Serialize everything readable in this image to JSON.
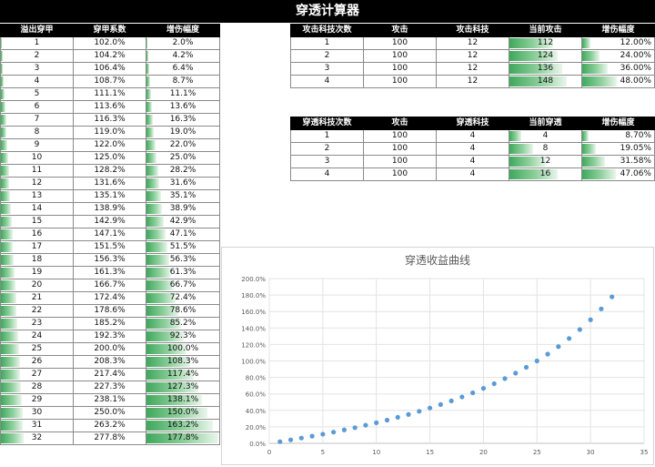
{
  "page": {
    "title": "穿透计算器"
  },
  "left_table": {
    "headers": [
      "溢出穿甲",
      "穿甲系数",
      "增伤幅度"
    ],
    "rows": [
      [
        "1",
        "102.0%",
        "2.0%"
      ],
      [
        "2",
        "104.2%",
        "4.2%"
      ],
      [
        "3",
        "106.4%",
        "6.4%"
      ],
      [
        "4",
        "108.7%",
        "8.7%"
      ],
      [
        "5",
        "111.1%",
        "11.1%"
      ],
      [
        "6",
        "113.6%",
        "13.6%"
      ],
      [
        "7",
        "116.3%",
        "16.3%"
      ],
      [
        "8",
        "119.0%",
        "19.0%"
      ],
      [
        "9",
        "122.0%",
        "22.0%"
      ],
      [
        "10",
        "125.0%",
        "25.0%"
      ],
      [
        "11",
        "128.2%",
        "28.2%"
      ],
      [
        "12",
        "131.6%",
        "31.6%"
      ],
      [
        "13",
        "135.1%",
        "35.1%"
      ],
      [
        "14",
        "138.9%",
        "38.9%"
      ],
      [
        "15",
        "142.9%",
        "42.9%"
      ],
      [
        "16",
        "147.1%",
        "47.1%"
      ],
      [
        "17",
        "151.5%",
        "51.5%"
      ],
      [
        "18",
        "156.3%",
        "56.3%"
      ],
      [
        "19",
        "161.3%",
        "61.3%"
      ],
      [
        "20",
        "166.7%",
        "66.7%"
      ],
      [
        "21",
        "172.4%",
        "72.4%"
      ],
      [
        "22",
        "178.6%",
        "78.6%"
      ],
      [
        "23",
        "185.2%",
        "85.2%"
      ],
      [
        "24",
        "192.3%",
        "92.3%"
      ],
      [
        "25",
        "200.0%",
        "100.0%"
      ],
      [
        "26",
        "208.3%",
        "108.3%"
      ],
      [
        "27",
        "217.4%",
        "117.4%"
      ],
      [
        "28",
        "227.3%",
        "127.3%"
      ],
      [
        "29",
        "238.1%",
        "138.1%"
      ],
      [
        "30",
        "250.0%",
        "150.0%"
      ],
      [
        "31",
        "263.2%",
        "163.2%"
      ],
      [
        "32",
        "277.8%",
        "177.8%"
      ]
    ]
  },
  "attack_table": {
    "headers": [
      "攻击科技次数",
      "攻击",
      "攻击科技",
      "当前攻击",
      "增伤幅度"
    ],
    "rows": [
      [
        "1",
        "100",
        "12",
        "112",
        "12.00%"
      ],
      [
        "2",
        "100",
        "12",
        "124",
        "24.00%"
      ],
      [
        "3",
        "100",
        "12",
        "136",
        "36.00%"
      ],
      [
        "4",
        "100",
        "12",
        "148",
        "48.00%"
      ]
    ]
  },
  "pen_table": {
    "headers": [
      "穿透科技次数",
      "攻击",
      "穿透科技",
      "当前穿透",
      "增伤幅度"
    ],
    "rows": [
      [
        "1",
        "100",
        "4",
        "4",
        "8.70%"
      ],
      [
        "2",
        "100",
        "4",
        "8",
        "19.05%"
      ],
      [
        "3",
        "100",
        "4",
        "12",
        "31.58%"
      ],
      [
        "4",
        "100",
        "4",
        "16",
        "47.06%"
      ]
    ]
  },
  "chart_data": {
    "type": "scatter",
    "title": "穿透收益曲线",
    "xlabel": "",
    "ylabel": "",
    "xlim": [
      0,
      35
    ],
    "ylim": [
      0,
      2.0
    ],
    "x_ticks": [
      "0",
      "5",
      "10",
      "15",
      "20",
      "25",
      "30",
      "35"
    ],
    "y_ticks": [
      "0.0%",
      "20.0%",
      "40.0%",
      "60.0%",
      "80.0%",
      "100.0%",
      "120.0%",
      "140.0%",
      "160.0%",
      "180.0%",
      "200.0%"
    ],
    "grid": true,
    "series": [
      {
        "color": "#5b9bd5",
        "x": [
          1,
          2,
          3,
          4,
          5,
          6,
          7,
          8,
          9,
          10,
          11,
          12,
          13,
          14,
          15,
          16,
          17,
          18,
          19,
          20,
          21,
          22,
          23,
          24,
          25,
          26,
          27,
          28,
          29,
          30,
          31,
          32
        ],
        "y": [
          0.02,
          0.042,
          0.064,
          0.087,
          0.111,
          0.136,
          0.163,
          0.19,
          0.22,
          0.25,
          0.282,
          0.316,
          0.351,
          0.389,
          0.429,
          0.471,
          0.515,
          0.563,
          0.613,
          0.667,
          0.724,
          0.786,
          0.852,
          0.923,
          1.0,
          1.083,
          1.174,
          1.273,
          1.381,
          1.5,
          1.632,
          1.778
        ]
      }
    ]
  }
}
